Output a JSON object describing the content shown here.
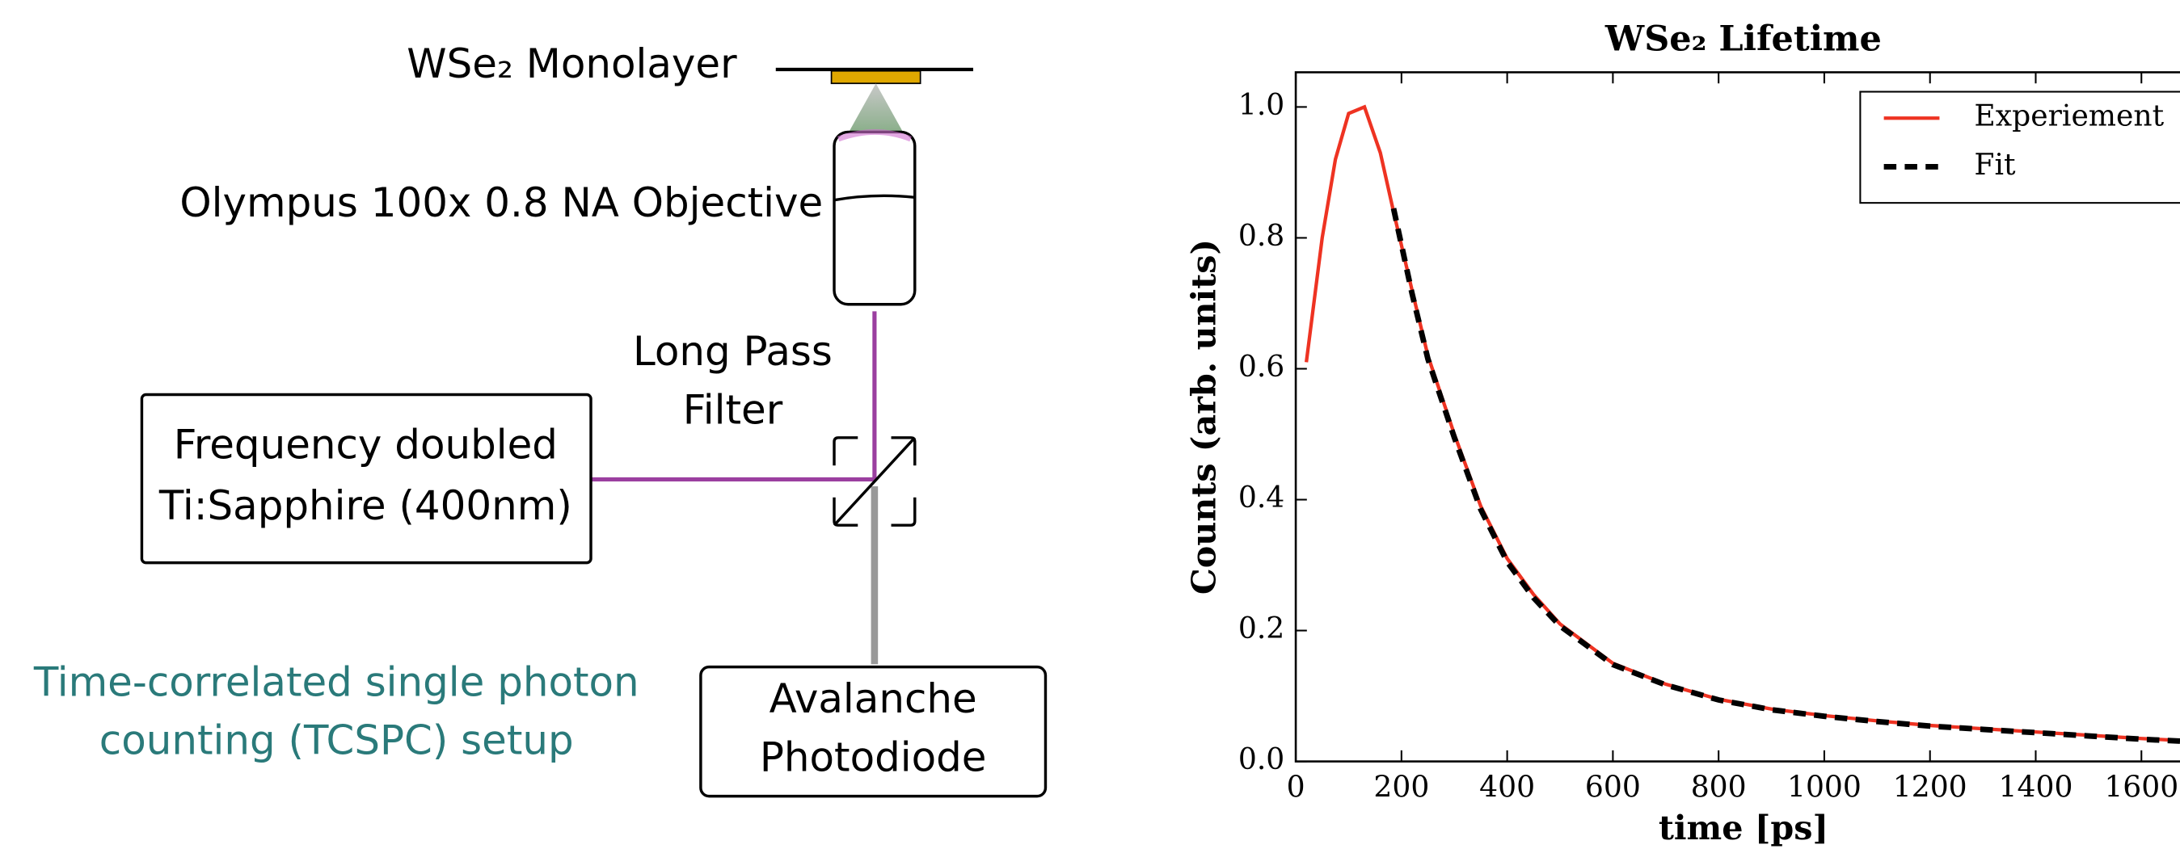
{
  "diagram": {
    "sample_label": "WSe₂ Monolayer",
    "objective_label": "Olympus 100x 0.8 NA Objective",
    "filter_label": [
      "Long Pass",
      "Filter"
    ],
    "laser_label": [
      "Frequency doubled",
      "Ti:Sapphire (400nm)"
    ],
    "detector_label": [
      "Avalanche",
      "Photodiode"
    ],
    "caption": [
      "Time-correlated single photon",
      "counting (TCSPC) setup"
    ]
  },
  "chart_data": {
    "type": "line",
    "title": "WSe₂ Lifetime",
    "xlabel": "time [ps]",
    "ylabel": "Counts (arb. units)",
    "x": [
      20,
      50,
      75,
      100,
      130,
      160,
      185,
      220,
      250,
      300,
      350,
      400,
      450,
      500,
      600,
      700,
      800,
      900,
      1000,
      1100,
      1200,
      1300,
      1400,
      1500,
      1600,
      1673
    ],
    "series": [
      {
        "name": "Experiement",
        "color": "#ee3322",
        "dash": false,
        "values": [
          0.61,
          0.8,
          0.92,
          0.99,
          1.0,
          0.93,
          0.84,
          0.72,
          0.62,
          0.5,
          0.39,
          0.31,
          0.255,
          0.21,
          0.15,
          0.118,
          0.095,
          0.08,
          0.07,
          0.062,
          0.055,
          0.05,
          0.045,
          0.04,
          0.035,
          0.032
        ]
      },
      {
        "name": "Fit",
        "color": "#000000",
        "dash": true,
        "values": [
          null,
          null,
          null,
          null,
          null,
          null,
          0.845,
          0.715,
          0.615,
          0.495,
          0.385,
          0.305,
          0.25,
          0.207,
          0.148,
          0.117,
          0.094,
          0.079,
          0.069,
          0.061,
          0.054,
          0.049,
          0.044,
          0.039,
          0.034,
          0.031
        ]
      }
    ],
    "xlim": [
      0,
      1673
    ],
    "ylim": [
      0,
      1.053
    ],
    "xticks": [
      0,
      200,
      400,
      600,
      800,
      1000,
      1200,
      1400,
      1600
    ],
    "yticks": [
      {
        "value": 0,
        "label": "0.0"
      },
      {
        "value": 0.2,
        "label": "0.2"
      },
      {
        "value": 0.4,
        "label": "0.4"
      },
      {
        "value": 0.6,
        "label": "0.6"
      },
      {
        "value": 0.8,
        "label": "0.8"
      },
      {
        "value": 1.0,
        "label": "1.0"
      }
    ],
    "legend": "upper right",
    "grid": false
  }
}
